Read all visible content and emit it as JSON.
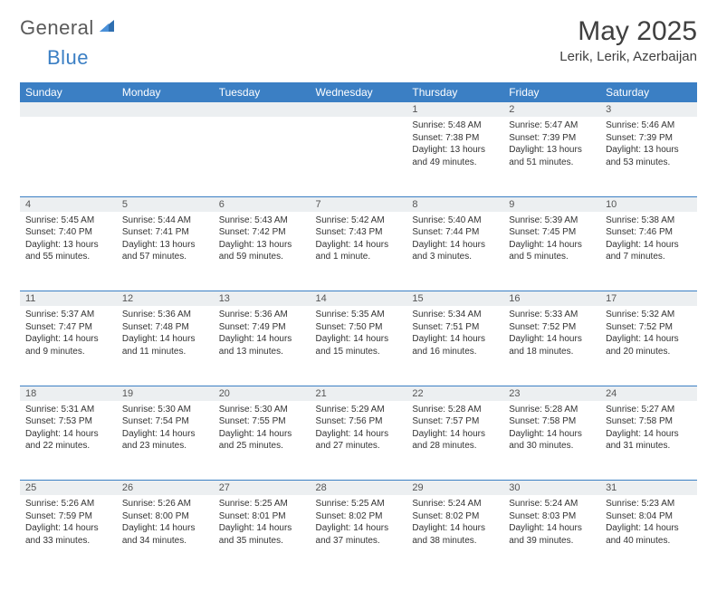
{
  "brand": {
    "part1": "General",
    "part2": "Blue"
  },
  "title": "May 2025",
  "location": "Lerik, Lerik, Azerbaijan",
  "colors": {
    "header_bg": "#3b7fc4",
    "header_text": "#ffffff",
    "daynum_bg": "#eceff1",
    "border": "#3b7fc4",
    "text": "#333333"
  },
  "weekdays": [
    "Sunday",
    "Monday",
    "Tuesday",
    "Wednesday",
    "Thursday",
    "Friday",
    "Saturday"
  ],
  "weeks": [
    [
      null,
      null,
      null,
      null,
      {
        "n": "1",
        "sr": "Sunrise: 5:48 AM",
        "ss": "Sunset: 7:38 PM",
        "dl": "Daylight: 13 hours and 49 minutes."
      },
      {
        "n": "2",
        "sr": "Sunrise: 5:47 AM",
        "ss": "Sunset: 7:39 PM",
        "dl": "Daylight: 13 hours and 51 minutes."
      },
      {
        "n": "3",
        "sr": "Sunrise: 5:46 AM",
        "ss": "Sunset: 7:39 PM",
        "dl": "Daylight: 13 hours and 53 minutes."
      }
    ],
    [
      {
        "n": "4",
        "sr": "Sunrise: 5:45 AM",
        "ss": "Sunset: 7:40 PM",
        "dl": "Daylight: 13 hours and 55 minutes."
      },
      {
        "n": "5",
        "sr": "Sunrise: 5:44 AM",
        "ss": "Sunset: 7:41 PM",
        "dl": "Daylight: 13 hours and 57 minutes."
      },
      {
        "n": "6",
        "sr": "Sunrise: 5:43 AM",
        "ss": "Sunset: 7:42 PM",
        "dl": "Daylight: 13 hours and 59 minutes."
      },
      {
        "n": "7",
        "sr": "Sunrise: 5:42 AM",
        "ss": "Sunset: 7:43 PM",
        "dl": "Daylight: 14 hours and 1 minute."
      },
      {
        "n": "8",
        "sr": "Sunrise: 5:40 AM",
        "ss": "Sunset: 7:44 PM",
        "dl": "Daylight: 14 hours and 3 minutes."
      },
      {
        "n": "9",
        "sr": "Sunrise: 5:39 AM",
        "ss": "Sunset: 7:45 PM",
        "dl": "Daylight: 14 hours and 5 minutes."
      },
      {
        "n": "10",
        "sr": "Sunrise: 5:38 AM",
        "ss": "Sunset: 7:46 PM",
        "dl": "Daylight: 14 hours and 7 minutes."
      }
    ],
    [
      {
        "n": "11",
        "sr": "Sunrise: 5:37 AM",
        "ss": "Sunset: 7:47 PM",
        "dl": "Daylight: 14 hours and 9 minutes."
      },
      {
        "n": "12",
        "sr": "Sunrise: 5:36 AM",
        "ss": "Sunset: 7:48 PM",
        "dl": "Daylight: 14 hours and 11 minutes."
      },
      {
        "n": "13",
        "sr": "Sunrise: 5:36 AM",
        "ss": "Sunset: 7:49 PM",
        "dl": "Daylight: 14 hours and 13 minutes."
      },
      {
        "n": "14",
        "sr": "Sunrise: 5:35 AM",
        "ss": "Sunset: 7:50 PM",
        "dl": "Daylight: 14 hours and 15 minutes."
      },
      {
        "n": "15",
        "sr": "Sunrise: 5:34 AM",
        "ss": "Sunset: 7:51 PM",
        "dl": "Daylight: 14 hours and 16 minutes."
      },
      {
        "n": "16",
        "sr": "Sunrise: 5:33 AM",
        "ss": "Sunset: 7:52 PM",
        "dl": "Daylight: 14 hours and 18 minutes."
      },
      {
        "n": "17",
        "sr": "Sunrise: 5:32 AM",
        "ss": "Sunset: 7:52 PM",
        "dl": "Daylight: 14 hours and 20 minutes."
      }
    ],
    [
      {
        "n": "18",
        "sr": "Sunrise: 5:31 AM",
        "ss": "Sunset: 7:53 PM",
        "dl": "Daylight: 14 hours and 22 minutes."
      },
      {
        "n": "19",
        "sr": "Sunrise: 5:30 AM",
        "ss": "Sunset: 7:54 PM",
        "dl": "Daylight: 14 hours and 23 minutes."
      },
      {
        "n": "20",
        "sr": "Sunrise: 5:30 AM",
        "ss": "Sunset: 7:55 PM",
        "dl": "Daylight: 14 hours and 25 minutes."
      },
      {
        "n": "21",
        "sr": "Sunrise: 5:29 AM",
        "ss": "Sunset: 7:56 PM",
        "dl": "Daylight: 14 hours and 27 minutes."
      },
      {
        "n": "22",
        "sr": "Sunrise: 5:28 AM",
        "ss": "Sunset: 7:57 PM",
        "dl": "Daylight: 14 hours and 28 minutes."
      },
      {
        "n": "23",
        "sr": "Sunrise: 5:28 AM",
        "ss": "Sunset: 7:58 PM",
        "dl": "Daylight: 14 hours and 30 minutes."
      },
      {
        "n": "24",
        "sr": "Sunrise: 5:27 AM",
        "ss": "Sunset: 7:58 PM",
        "dl": "Daylight: 14 hours and 31 minutes."
      }
    ],
    [
      {
        "n": "25",
        "sr": "Sunrise: 5:26 AM",
        "ss": "Sunset: 7:59 PM",
        "dl": "Daylight: 14 hours and 33 minutes."
      },
      {
        "n": "26",
        "sr": "Sunrise: 5:26 AM",
        "ss": "Sunset: 8:00 PM",
        "dl": "Daylight: 14 hours and 34 minutes."
      },
      {
        "n": "27",
        "sr": "Sunrise: 5:25 AM",
        "ss": "Sunset: 8:01 PM",
        "dl": "Daylight: 14 hours and 35 minutes."
      },
      {
        "n": "28",
        "sr": "Sunrise: 5:25 AM",
        "ss": "Sunset: 8:02 PM",
        "dl": "Daylight: 14 hours and 37 minutes."
      },
      {
        "n": "29",
        "sr": "Sunrise: 5:24 AM",
        "ss": "Sunset: 8:02 PM",
        "dl": "Daylight: 14 hours and 38 minutes."
      },
      {
        "n": "30",
        "sr": "Sunrise: 5:24 AM",
        "ss": "Sunset: 8:03 PM",
        "dl": "Daylight: 14 hours and 39 minutes."
      },
      {
        "n": "31",
        "sr": "Sunrise: 5:23 AM",
        "ss": "Sunset: 8:04 PM",
        "dl": "Daylight: 14 hours and 40 minutes."
      }
    ]
  ]
}
